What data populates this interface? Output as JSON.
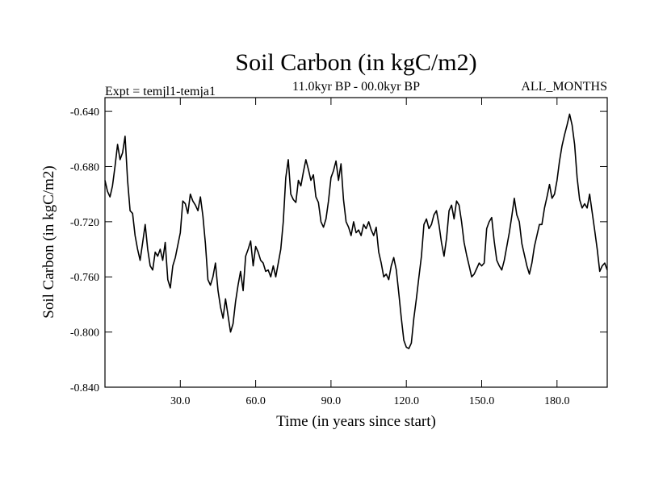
{
  "chart_data": {
    "type": "line",
    "title": "Soil Carbon (in kgC/m2)",
    "subtitle_left": "Expt = temjl1-temja1",
    "subtitle_center": "11.0kyr BP - 00.0kyr BP",
    "subtitle_right": "ALL_MONTHS",
    "xlabel": "Time (in years since start)",
    "ylabel": "Soil Carbon (in kgC/m2)",
    "xlim": [
      0,
      200
    ],
    "ylim": [
      -0.84,
      -0.63
    ],
    "xticks": [
      30,
      60,
      90,
      120,
      150,
      180
    ],
    "xtick_labels": [
      "30.0",
      "60.0",
      "90.0",
      "120.0",
      "150.0",
      "180.0"
    ],
    "yticks": [
      -0.64,
      -0.68,
      -0.72,
      -0.76,
      -0.8,
      -0.84
    ],
    "ytick_labels": [
      "-0.640",
      "-0.680",
      "-0.720",
      "-0.760",
      "-0.800",
      "-0.840"
    ],
    "grid": false,
    "line_color": "#000000",
    "series": [
      {
        "name": "Soil Carbon",
        "x": [
          0,
          1,
          2,
          3,
          4,
          5,
          6,
          7,
          8,
          9,
          10,
          11,
          12,
          13,
          14,
          15,
          16,
          17,
          18,
          19,
          20,
          21,
          22,
          23,
          24,
          25,
          26,
          27,
          28,
          29,
          30,
          31,
          32,
          33,
          34,
          35,
          36,
          37,
          38,
          39,
          40,
          41,
          42,
          43,
          44,
          45,
          46,
          47,
          48,
          49,
          50,
          51,
          52,
          53,
          54,
          55,
          56,
          57,
          58,
          59,
          60,
          61,
          62,
          63,
          64,
          65,
          66,
          67,
          68,
          69,
          70,
          71,
          72,
          73,
          74,
          75,
          76,
          77,
          78,
          79,
          80,
          81,
          82,
          83,
          84,
          85,
          86,
          87,
          88,
          89,
          90,
          91,
          92,
          93,
          94,
          95,
          96,
          97,
          98,
          99,
          100,
          101,
          102,
          103,
          104,
          105,
          106,
          107,
          108,
          109,
          110,
          111,
          112,
          113,
          114,
          115,
          116,
          117,
          118,
          119,
          120,
          121,
          122,
          123,
          124,
          125,
          126,
          127,
          128,
          129,
          130,
          131,
          132,
          133,
          134,
          135,
          136,
          137,
          138,
          139,
          140,
          141,
          142,
          143,
          144,
          145,
          146,
          147,
          148,
          149,
          150,
          151,
          152,
          153,
          154,
          155,
          156,
          157,
          158,
          159,
          160,
          161,
          162,
          163,
          164,
          165,
          166,
          167,
          168,
          169,
          170,
          171,
          172,
          173,
          174,
          175,
          176,
          177,
          178,
          179,
          180,
          181,
          182,
          183,
          184,
          185,
          186,
          187,
          188,
          189,
          190,
          191,
          192,
          193,
          194,
          195,
          196,
          197,
          198,
          199,
          200
        ],
        "y": [
          -0.69,
          -0.698,
          -0.702,
          -0.694,
          -0.68,
          -0.664,
          -0.675,
          -0.67,
          -0.658,
          -0.69,
          -0.712,
          -0.714,
          -0.73,
          -0.74,
          -0.748,
          -0.735,
          -0.722,
          -0.74,
          -0.752,
          -0.755,
          -0.742,
          -0.745,
          -0.74,
          -0.748,
          -0.735,
          -0.762,
          -0.768,
          -0.752,
          -0.746,
          -0.737,
          -0.728,
          -0.705,
          -0.707,
          -0.714,
          -0.7,
          -0.705,
          -0.708,
          -0.712,
          -0.702,
          -0.716,
          -0.736,
          -0.762,
          -0.766,
          -0.76,
          -0.75,
          -0.77,
          -0.782,
          -0.79,
          -0.776,
          -0.788,
          -0.8,
          -0.794,
          -0.778,
          -0.766,
          -0.756,
          -0.77,
          -0.745,
          -0.74,
          -0.734,
          -0.752,
          -0.738,
          -0.742,
          -0.748,
          -0.75,
          -0.756,
          -0.755,
          -0.76,
          -0.752,
          -0.76,
          -0.75,
          -0.74,
          -0.72,
          -0.688,
          -0.675,
          -0.7,
          -0.704,
          -0.706,
          -0.69,
          -0.694,
          -0.684,
          -0.675,
          -0.682,
          -0.69,
          -0.686,
          -0.702,
          -0.706,
          -0.72,
          -0.724,
          -0.718,
          -0.705,
          -0.688,
          -0.683,
          -0.676,
          -0.69,
          -0.678,
          -0.704,
          -0.72,
          -0.724,
          -0.73,
          -0.72,
          -0.728,
          -0.726,
          -0.73,
          -0.722,
          -0.725,
          -0.72,
          -0.726,
          -0.73,
          -0.724,
          -0.742,
          -0.75,
          -0.76,
          -0.758,
          -0.762,
          -0.752,
          -0.746,
          -0.755,
          -0.772,
          -0.79,
          -0.806,
          -0.811,
          -0.812,
          -0.808,
          -0.79,
          -0.776,
          -0.76,
          -0.745,
          -0.722,
          -0.718,
          -0.725,
          -0.722,
          -0.715,
          -0.712,
          -0.722,
          -0.735,
          -0.745,
          -0.732,
          -0.712,
          -0.708,
          -0.718,
          -0.705,
          -0.708,
          -0.72,
          -0.735,
          -0.744,
          -0.752,
          -0.76,
          -0.758,
          -0.754,
          -0.75,
          -0.752,
          -0.75,
          -0.725,
          -0.72,
          -0.717,
          -0.734,
          -0.748,
          -0.752,
          -0.755,
          -0.748,
          -0.738,
          -0.728,
          -0.716,
          -0.703,
          -0.715,
          -0.72,
          -0.736,
          -0.744,
          -0.752,
          -0.758,
          -0.75,
          -0.738,
          -0.73,
          -0.722,
          -0.722,
          -0.71,
          -0.702,
          -0.693,
          -0.703,
          -0.7,
          -0.69,
          -0.676,
          -0.665,
          -0.657,
          -0.65,
          -0.642,
          -0.65,
          -0.664,
          -0.688,
          -0.704,
          -0.71,
          -0.707,
          -0.71,
          -0.7,
          -0.713,
          -0.726,
          -0.74,
          -0.756,
          -0.752,
          -0.75,
          -0.755
        ]
      }
    ]
  }
}
